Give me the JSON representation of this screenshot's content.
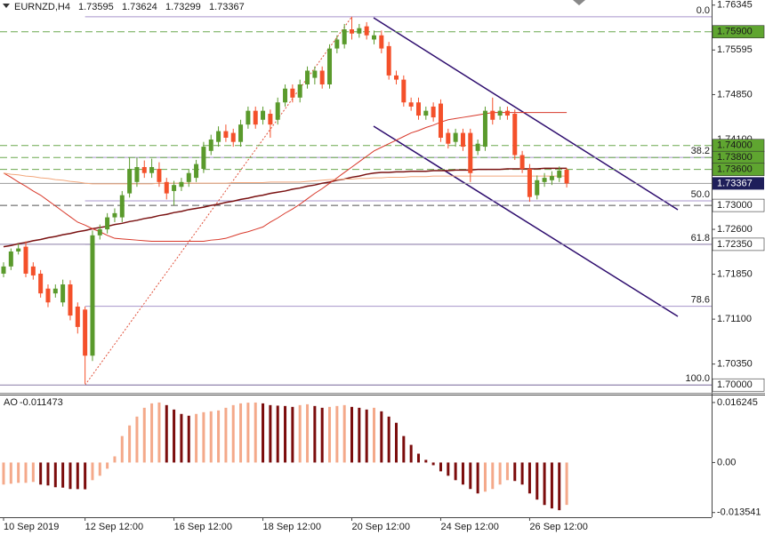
{
  "chart_data": [
    {
      "type": "candlestick",
      "title": "EURNZD,H4",
      "categories": [
        "10 Sep 2019",
        null,
        null,
        null,
        null,
        null,
        null,
        null,
        null,
        null,
        null,
        "12 Sep 12:00",
        null,
        null,
        null,
        null,
        null,
        null,
        null,
        null,
        null,
        null,
        null,
        "16 Sep 12:00",
        null,
        null,
        null,
        null,
        null,
        null,
        null,
        null,
        null,
        null,
        null,
        "18 Sep 12:00",
        null,
        null,
        null,
        null,
        null,
        null,
        null,
        null,
        null,
        null,
        null,
        "20 Sep 12:00",
        null,
        null,
        null,
        null,
        null,
        null,
        null,
        null,
        null,
        null,
        null,
        "24 Sep 12:00",
        null,
        null,
        null,
        null,
        null,
        null,
        null,
        null,
        null,
        null,
        null,
        "26 Sep 12:00",
        null,
        null,
        null,
        null,
        null
      ],
      "ohlc": [
        [
          1.7186,
          1.7205,
          1.718,
          1.7198
        ],
        [
          1.7198,
          1.7228,
          1.7192,
          1.7223
        ],
        [
          1.7223,
          1.7236,
          1.7218,
          1.7228
        ],
        [
          1.7231,
          1.724,
          1.718,
          1.7186
        ],
        [
          1.7198,
          1.7205,
          1.7176,
          1.7183
        ],
        [
          1.7186,
          1.7192,
          1.7146,
          1.7153
        ],
        [
          1.7161,
          1.7168,
          1.713,
          1.7138
        ],
        [
          1.7153,
          1.7168,
          1.7146,
          1.7161
        ],
        [
          1.7138,
          1.7176,
          1.7131,
          1.7168
        ],
        [
          1.7168,
          1.7175,
          1.7108,
          1.7116
        ],
        [
          1.7131,
          1.7138,
          1.7086,
          1.7097
        ],
        [
          1.7126,
          1.7131,
          1.7002,
          1.7049
        ],
        [
          1.7049,
          1.7258,
          1.704,
          1.725
        ],
        [
          1.725,
          1.7268,
          1.7243,
          1.726
        ],
        [
          1.726,
          1.7287,
          1.7253,
          1.728
        ],
        [
          1.728,
          1.7295,
          1.7272,
          1.7287
        ],
        [
          1.728,
          1.7324,
          1.7272,
          1.7317
        ],
        [
          1.732,
          1.738,
          1.7313,
          1.7361
        ],
        [
          1.7339,
          1.738,
          1.7331,
          1.7364
        ],
        [
          1.7364,
          1.7375,
          1.7346,
          1.7354
        ],
        [
          1.7354,
          1.7378,
          1.7346,
          1.7364
        ],
        [
          1.7361,
          1.7372,
          1.7331,
          1.7339
        ],
        [
          1.7339,
          1.7346,
          1.731,
          1.732
        ],
        [
          1.7324,
          1.7341,
          1.73,
          1.7334
        ],
        [
          1.7331,
          1.7346,
          1.7324,
          1.7339
        ],
        [
          1.7339,
          1.7361,
          1.7331,
          1.7354
        ],
        [
          1.7346,
          1.7376,
          1.7339,
          1.7369
        ],
        [
          1.7361,
          1.7406,
          1.7354,
          1.7398
        ],
        [
          1.7391,
          1.7418,
          1.7384,
          1.741
        ],
        [
          1.7406,
          1.7432,
          1.7398,
          1.7424
        ],
        [
          1.7424,
          1.7435,
          1.7406,
          1.7413
        ],
        [
          1.7421,
          1.7428,
          1.7398,
          1.7406
        ],
        [
          1.7406,
          1.7443,
          1.7398,
          1.7435
        ],
        [
          1.7435,
          1.7465,
          1.7428,
          1.7458
        ],
        [
          1.7458,
          1.7465,
          1.7428,
          1.7435
        ],
        [
          1.7443,
          1.7465,
          1.7435,
          1.7458
        ],
        [
          1.7453,
          1.746,
          1.7413,
          1.7435
        ],
        [
          1.7443,
          1.748,
          1.7435,
          1.7472
        ],
        [
          1.7472,
          1.7502,
          1.7465,
          1.7495
        ],
        [
          1.7495,
          1.7502,
          1.7472,
          1.748
        ],
        [
          1.748,
          1.751,
          1.7472,
          1.7502
        ],
        [
          1.7502,
          1.7532,
          1.7495,
          1.7525
        ],
        [
          1.7513,
          1.7532,
          1.7502,
          1.7525
        ],
        [
          1.7525,
          1.7532,
          1.7495,
          1.7502
        ],
        [
          1.7502,
          1.7569,
          1.7495,
          1.7562
        ],
        [
          1.7562,
          1.7584,
          1.7554,
          1.7577
        ],
        [
          1.7569,
          1.7603,
          1.7562,
          1.7594
        ],
        [
          1.7594,
          1.7615,
          1.7577,
          1.7587
        ],
        [
          1.7587,
          1.7603,
          1.758,
          1.7596
        ],
        [
          1.7599,
          1.7606,
          1.7577,
          1.7584
        ],
        [
          1.7577,
          1.7592,
          1.7569,
          1.7584
        ],
        [
          1.7584,
          1.7592,
          1.7554,
          1.7562
        ],
        [
          1.7566,
          1.7573,
          1.751,
          1.7517
        ],
        [
          1.7517,
          1.7525,
          1.7502,
          1.751
        ],
        [
          1.751,
          1.7517,
          1.7465,
          1.7472
        ],
        [
          1.7472,
          1.748,
          1.7458,
          1.7465
        ],
        [
          1.7472,
          1.748,
          1.7443,
          1.745
        ],
        [
          1.745,
          1.7465,
          1.7443,
          1.7458
        ],
        [
          1.7465,
          1.7472,
          1.744,
          1.7447
        ],
        [
          1.747,
          1.7477,
          1.7406,
          1.7413
        ],
        [
          1.7421,
          1.7428,
          1.7395,
          1.7403
        ],
        [
          1.7406,
          1.7428,
          1.7398,
          1.7421
        ],
        [
          1.7421,
          1.7428,
          1.7391,
          1.7398
        ],
        [
          1.7421,
          1.7428,
          1.7339,
          1.7354
        ],
        [
          1.7391,
          1.741,
          1.7384,
          1.7403
        ],
        [
          1.7398,
          1.7465,
          1.7391,
          1.7458
        ],
        [
          1.7458,
          1.748,
          1.7435,
          1.7443
        ],
        [
          1.745,
          1.7465,
          1.7443,
          1.7458
        ],
        [
          1.7458,
          1.7465,
          1.7443,
          1.745
        ],
        [
          1.7453,
          1.746,
          1.7376,
          1.7384
        ],
        [
          1.7384,
          1.7391,
          1.7354,
          1.7361
        ],
        [
          1.7361,
          1.7369,
          1.7306,
          1.7314
        ],
        [
          1.7317,
          1.735,
          1.731,
          1.7342
        ],
        [
          1.7339,
          1.7354,
          1.7331,
          1.7346
        ],
        [
          1.7342,
          1.7357,
          1.7334,
          1.7349
        ],
        [
          1.7346,
          1.7365,
          1.7339,
          1.7358
        ],
        [
          1.73595,
          1.73624,
          1.73299,
          1.73367
        ]
      ],
      "up_color": "#5a9a2c",
      "down_color": "#f4502a",
      "current_color": "#1e1e5a",
      "ylim": [
        1.6987,
        1.7643
      ],
      "yticks": [
        1.76345,
        1.75595,
        {
          "value": 1.7485,
          "label": "1.74850"
        },
        {
          "value": 1.741,
          "label": "1.74100"
        },
        {
          "value": 1.726,
          "label": "1.72600"
        },
        {
          "value": 1.7185,
          "label": "1.71850"
        },
        {
          "value": 1.711,
          "label": "1.71100"
        },
        {
          "value": 1.7035,
          "label": "1.70350"
        }
      ],
      "moving_averages": [
        {
          "color": "#7a1212",
          "values": [
            1.7231,
            1.7233,
            1.7236,
            1.7238,
            1.7241,
            1.7243,
            1.7246,
            1.7248,
            1.7251,
            1.7253,
            1.7256,
            1.7258,
            1.7261,
            1.7263,
            1.7265,
            1.7268,
            1.727,
            1.7273,
            1.7275,
            1.7278,
            1.728,
            1.7283,
            1.7285,
            1.7288,
            1.729,
            1.7293,
            1.7295,
            1.7297,
            1.73,
            1.7302,
            1.7305,
            1.7307,
            1.731,
            1.7312,
            1.7315,
            1.7317,
            1.732,
            1.7322,
            1.7324,
            1.7327,
            1.7329,
            1.7332,
            1.7334,
            1.7337,
            1.7339,
            1.7342,
            1.7344,
            1.7347,
            1.7349,
            1.7352,
            1.7354,
            1.7355,
            1.7355,
            1.7356,
            1.7356,
            1.7357,
            1.7357,
            1.7357,
            1.7358,
            1.7358,
            1.7358,
            1.7359,
            1.7359,
            1.7359,
            1.736,
            1.736,
            1.736,
            1.736,
            1.7361,
            1.7361,
            1.7361,
            1.7361,
            1.7361,
            1.7362,
            1.7362,
            1.7362,
            1.7362
          ]
        },
        {
          "color": "#d8382a",
          "values": [
            1.7354,
            1.7347,
            1.7339,
            1.7332,
            1.7324,
            1.7317,
            1.7308,
            1.7299,
            1.729,
            1.7281,
            1.7272,
            1.7267,
            1.7261,
            1.7256,
            1.725,
            1.7245,
            1.7244,
            1.7243,
            1.7242,
            1.7241,
            1.724,
            1.724,
            1.724,
            1.724,
            1.724,
            1.724,
            1.724,
            1.724,
            1.7242,
            1.7243,
            1.7245,
            1.7249,
            1.7253,
            1.7256,
            1.726,
            1.7264,
            1.7272,
            1.7279,
            1.7287,
            1.7294,
            1.7302,
            1.7311,
            1.732,
            1.7328,
            1.7337,
            1.7346,
            1.7355,
            1.7364,
            1.7373,
            1.7382,
            1.7391,
            1.7397,
            1.7403,
            1.7409,
            1.7415,
            1.7421,
            1.7425,
            1.743,
            1.7434,
            1.7439,
            1.7443,
            1.7445,
            1.7447,
            1.7449,
            1.7451,
            1.7453,
            1.7455,
            1.7455,
            1.7455,
            1.7455,
            1.7455,
            1.7455,
            1.7455,
            1.7455,
            1.7455,
            1.7455,
            1.7455
          ]
        },
        {
          "color": "#f2a77c",
          "values": [
            1.7354,
            1.7352,
            1.7351,
            1.7349,
            1.7348,
            1.7346,
            1.7345,
            1.7343,
            1.7342,
            1.734,
            1.7339,
            1.7337,
            1.7336,
            1.7336,
            1.7336,
            1.7336,
            1.7336,
            1.7336,
            1.7336,
            1.7336,
            1.7336,
            1.7337,
            1.7337,
            1.7337,
            1.7337,
            1.7337,
            1.7337,
            1.7337,
            1.7337,
            1.7337,
            1.7337,
            1.7338,
            1.7338,
            1.7338,
            1.7338,
            1.7338,
            1.7339,
            1.7339,
            1.7339,
            1.7339,
            1.7339,
            1.734,
            1.7341,
            1.7342,
            1.7343,
            1.7343,
            1.7344,
            1.7344,
            1.7345,
            1.7345,
            1.7346,
            1.7346,
            1.7347,
            1.7347,
            1.7347,
            1.7348,
            1.7348,
            1.7348,
            1.7349,
            1.7349,
            1.7349,
            1.7349,
            1.7349,
            1.7349,
            1.7349,
            1.7349,
            1.7349,
            1.7349,
            1.7349,
            1.7349,
            1.7349,
            1.7349,
            1.7349,
            1.7349,
            1.7349,
            1.7349,
            1.7349
          ]
        }
      ],
      "levels": [
        {
          "value": 1.759,
          "label": "1.75900",
          "line": "dashed",
          "line_color": "#6aa84f",
          "box_color": "#5fa530"
        },
        {
          "value": 1.74,
          "label": "1.74000",
          "line": "dashed",
          "line_color": "#6aa84f",
          "box_color": "#5fa530"
        },
        {
          "value": 1.738,
          "label": "1.73800",
          "line": "dashed",
          "line_color": "#6aa84f",
          "box_color": "#5fa530"
        },
        {
          "value": 1.736,
          "label": "1.73600",
          "line": "dashed",
          "line_color": "#6aa84f",
          "box_color": "#5fa530"
        },
        {
          "value": 1.73,
          "label": "1.73000",
          "line": "dashed",
          "line_color": "#555555",
          "box_color": "#ffffff"
        },
        {
          "value": 1.7235,
          "label": "1.72350",
          "line": "solid",
          "line_color": "#8c7fa8",
          "box_color": "#ffffff"
        },
        {
          "value": 1.7,
          "label": "1.70000",
          "line": "solid",
          "line_color": "#8c7fa8",
          "box_color": "#ffffff"
        }
      ],
      "fibonacci": {
        "color": "#a795cc",
        "trend_color": "#e0503a",
        "levels": [
          {
            "label": "0.0",
            "value": 1.7615
          },
          {
            "label": "38.2",
            "value": 1.73801
          },
          {
            "label": "50.0",
            "value": 1.73075
          },
          {
            "label": "61.8",
            "value": 1.72349
          },
          {
            "label": "78.6",
            "value": 1.71316
          },
          {
            "label": "100.0",
            "value": 1.7
          }
        ]
      }
    },
    {
      "type": "bar",
      "title": "AO",
      "values": [
        -0.00597,
        -0.00574,
        -0.0055,
        -0.0055,
        -0.00526,
        -0.00597,
        -0.00621,
        -0.00669,
        -0.0068,
        -0.00717,
        -0.0072,
        -0.00725,
        -0.00478,
        -0.00358,
        -0.00167,
        0.00167,
        0.00717,
        0.01004,
        0.01243,
        0.01482,
        0.01601,
        0.01625,
        0.01554,
        0.01434,
        0.01315,
        0.01267,
        0.01315,
        0.01362,
        0.01386,
        0.0141,
        0.01482,
        0.01554,
        0.01601,
        0.0162,
        0.01624,
        0.01601,
        0.01554,
        0.0154,
        0.0153,
        0.01506,
        0.01554,
        0.01577,
        0.0153,
        0.01482,
        0.01506,
        0.0153,
        0.01554,
        0.01506,
        0.01482,
        0.01434,
        0.01482,
        0.01386,
        0.01243,
        0.01076,
        0.00717,
        0.00478,
        0.00239,
        0.00072,
        -0.00072,
        -0.00239,
        -0.00358,
        -0.00478,
        -0.00597,
        -0.00717,
        -0.00837,
        -0.00789,
        -0.00717,
        -0.00597,
        -0.00478,
        -0.005,
        -0.00597,
        -0.00837,
        -0.01004,
        -0.0115,
        -0.01243,
        -0.01291,
        -0.011473
      ],
      "up_color": "#f4a98a",
      "down_color": "#7b0c0c",
      "ylim": [
        -0.01481,
        0.01839
      ],
      "yticks": [
        0.016245,
        {
          "value": 0,
          "label": "0.00"
        },
        -0.013541
      ]
    }
  ]
}
